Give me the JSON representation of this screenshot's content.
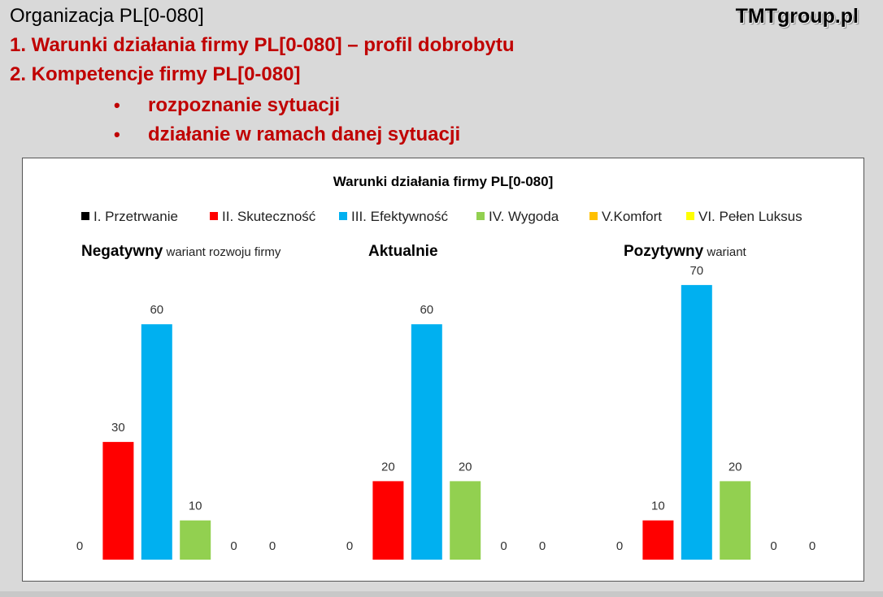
{
  "header": {
    "org_title": "Organizacja PL[0-080]",
    "brand": "TMTgroup.pl",
    "point1": "1. Warunki działania firmy PL[0-080] – profil dobrobytu",
    "point2": "2. Kompetencje firmy PL[0-080]",
    "bullet_symbol": "•",
    "bullets": [
      "rozpoznanie sytuacji",
      "działanie w ramach danej sytuacji"
    ]
  },
  "chart_data": {
    "type": "bar",
    "title": "Warunki działania firmy PL[0-080]",
    "legend_position": "top",
    "grid": false,
    "ylim": [
      0,
      80
    ],
    "series": [
      {
        "name": "I. Przetrwanie",
        "color": "#000000"
      },
      {
        "name": "II. Skuteczność",
        "color": "#ff0000"
      },
      {
        "name": "III. Efektywność",
        "color": "#00b0f0"
      },
      {
        "name": "IV. Wygoda",
        "color": "#92d050"
      },
      {
        "name": "V.Komfort",
        "color": "#ffc000"
      },
      {
        "name": "VI. Pełen Luksus",
        "color": "#ffff00"
      }
    ],
    "panels": [
      {
        "title_bold": "Negatywny",
        "title_rest": "wariant rozwoju firmy",
        "values": [
          0,
          30,
          60,
          10,
          0,
          0
        ]
      },
      {
        "title_bold": "Aktualnie",
        "title_rest": "",
        "values": [
          0,
          20,
          60,
          20,
          0,
          0
        ]
      },
      {
        "title_bold": "Pozytywny",
        "title_rest": "wariant",
        "values": [
          0,
          10,
          70,
          20,
          0,
          0
        ]
      }
    ]
  }
}
